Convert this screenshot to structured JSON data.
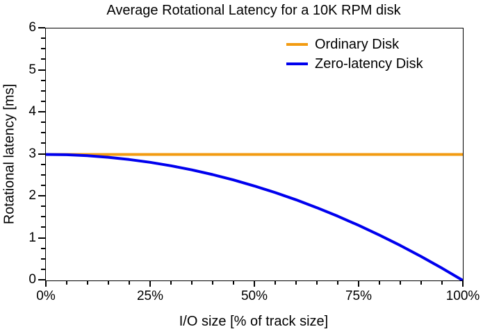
{
  "title": "Average Rotational Latency for a 10K RPM disk",
  "colors": {
    "ordinary": "#F29B11",
    "zero_latency": "#0000EE",
    "axis": "#000000",
    "background": "#FFFFFF"
  },
  "legend": {
    "position": "top-right",
    "items": [
      {
        "label": "Ordinary Disk",
        "color_key": "ordinary"
      },
      {
        "label": "Zero-latency Disk",
        "color_key": "zero_latency"
      }
    ]
  },
  "axes": {
    "x": {
      "label": "I/O size [% of track size]",
      "range": [
        0,
        100
      ],
      "major_ticks": [
        0,
        25,
        50,
        75,
        100
      ],
      "major_tick_labels": [
        "0%",
        "25%",
        "50%",
        "75%",
        "100%"
      ],
      "minor_tick_step": 5
    },
    "y": {
      "label": "Rotational latency [ms]",
      "range": [
        0,
        6
      ],
      "major_ticks": [
        0,
        1,
        2,
        3,
        4,
        5,
        6
      ],
      "major_tick_labels": [
        "0",
        "1",
        "2",
        "3",
        "4",
        "5",
        "6"
      ],
      "minor_tick_step": 0.25
    }
  },
  "chart_data": {
    "type": "line",
    "title": "Average Rotational Latency for a 10K RPM disk",
    "xlabel": "I/O size [% of track size]",
    "ylabel": "Rotational latency [ms]",
    "xlim": [
      0,
      100
    ],
    "ylim": [
      0,
      6
    ],
    "grid": false,
    "legend_position": "top-right",
    "x": [
      0,
      5,
      10,
      15,
      20,
      25,
      30,
      35,
      40,
      45,
      50,
      55,
      60,
      65,
      70,
      75,
      80,
      85,
      90,
      95,
      100
    ],
    "series": [
      {
        "name": "Ordinary Disk",
        "color_key": "ordinary",
        "values": [
          3.0,
          3.0,
          3.0,
          3.0,
          3.0,
          3.0,
          3.0,
          3.0,
          3.0,
          3.0,
          3.0,
          3.0,
          3.0,
          3.0,
          3.0,
          3.0,
          3.0,
          3.0,
          3.0,
          3.0,
          3.0
        ]
      },
      {
        "name": "Zero-latency Disk",
        "color_key": "zero_latency",
        "values": [
          3.0,
          2.993,
          2.97,
          2.933,
          2.88,
          2.813,
          2.73,
          2.633,
          2.52,
          2.393,
          2.25,
          2.093,
          1.92,
          1.733,
          1.53,
          1.313,
          1.08,
          0.833,
          0.57,
          0.293,
          0.0
        ]
      }
    ]
  }
}
